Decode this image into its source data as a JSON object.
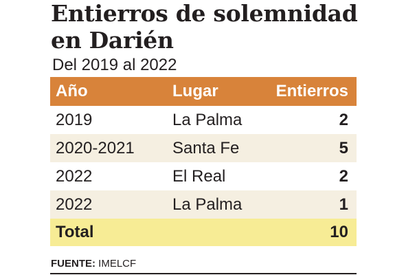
{
  "title": "Entierros de solemnidad en Darién",
  "subtitle": "Del 2019 al 2022",
  "colors": {
    "header_bg": "#d8833a",
    "row_alt_bg": "#f5efe1",
    "total_bg": "#f7ec95"
  },
  "chart_data": {
    "type": "table",
    "title": "Entierros de solemnidad en Darién",
    "subtitle": "Del 2019 al 2022",
    "columns": [
      "Año",
      "Lugar",
      "Entierros"
    ],
    "rows": [
      [
        "2019",
        "La Palma",
        2
      ],
      [
        "2020-2021",
        "Santa Fe",
        5
      ],
      [
        "2022",
        "El Real",
        2
      ],
      [
        "2022",
        "La Palma",
        1
      ]
    ],
    "total": {
      "label": "Total",
      "value": 10
    }
  },
  "source": {
    "label": "FUENTE:",
    "value": "IMELCF"
  }
}
